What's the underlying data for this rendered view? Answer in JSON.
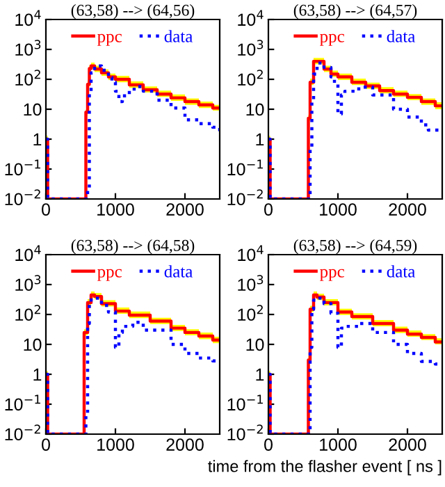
{
  "chart_data": [
    {
      "type": "step",
      "title": "(63,58) --> (64,56)",
      "legend": "top",
      "log": true,
      "grid": false,
      "xlim": [
        0,
        2500
      ],
      "xticks": [
        0,
        1000,
        2000
      ],
      "ylim": [
        0.01,
        10000
      ],
      "yticks": [
        {
          "value": 0.01,
          "label": "10$^{−2}$"
        },
        {
          "value": 0.1,
          "label": "10$^{−1}$"
        },
        1,
        10,
        {
          "value": 100,
          "label": "10$^{2}$"
        },
        {
          "value": 1000,
          "label": "10$^{3}$"
        },
        {
          "value": 10000,
          "label": "10$^{4}$"
        }
      ],
      "series": [
        {
          "name": "ppc",
          "color": "#ff0000",
          "line_style": "solid",
          "x": [
            0,
            25,
            575,
            600,
            625,
            650,
            700,
            800,
            900,
            1000,
            1200,
            1400,
            1600,
            1800,
            2000,
            2200,
            2400,
            2500
          ],
          "values": [
            1,
            0.01,
            8,
            68,
            230,
            280,
            220,
            165,
            120,
            100,
            65,
            45,
            32,
            24,
            18,
            14,
            11,
            11
          ],
          "lower": [
            0.8,
            0.01,
            6,
            55,
            185,
            225,
            175,
            130,
            95,
            80,
            52,
            36,
            26,
            19,
            14,
            11,
            9,
            9
          ],
          "upper": [
            1.3,
            0.01,
            10,
            90,
            300,
            360,
            285,
            215,
            155,
            130,
            85,
            58,
            42,
            31,
            23,
            18,
            14,
            14
          ]
        },
        {
          "name": "data",
          "color": "#0000ff",
          "line_style": "dotted",
          "x": [
            0,
            25,
            600,
            625,
            650,
            700,
            800,
            900,
            950,
            1000,
            1050,
            1100,
            1200,
            1300,
            1400,
            1600,
            1800,
            2000,
            2200,
            2400,
            2500
          ],
          "values": [
            1,
            0.01,
            0.02,
            40,
            165,
            280,
            200,
            115,
            80,
            40,
            18,
            28,
            47,
            57,
            40,
            20,
            11,
            4.4,
            3.3,
            2.5,
            1.4
          ]
        }
      ]
    },
    {
      "type": "step",
      "title": "(63,58) --> (64,57)",
      "legend": "top",
      "log": true,
      "grid": false,
      "xlim": [
        0,
        2500
      ],
      "xticks": [
        0,
        1000,
        2000
      ],
      "ylim": [
        0.01,
        10000
      ],
      "yticks": [
        {
          "value": 0.01,
          "label": "10$^{−2}$"
        },
        {
          "value": 0.1,
          "label": "10$^{−1}$"
        },
        1,
        10,
        {
          "value": 100,
          "label": "10$^{2}$"
        },
        {
          "value": 1000,
          "label": "10$^{3}$"
        },
        {
          "value": 10000,
          "label": "10$^{4}$"
        }
      ],
      "series": [
        {
          "name": "ppc",
          "color": "#ff0000",
          "line_style": "solid",
          "x": [
            0,
            25,
            575,
            600,
            650,
            700,
            800,
            900,
            1000,
            1200,
            1400,
            1600,
            1800,
            2000,
            2200,
            2400,
            2500
          ],
          "values": [
            1,
            0.01,
            5,
            80,
            400,
            400,
            220,
            150,
            120,
            80,
            60,
            42,
            32,
            25,
            18,
            13,
            13
          ],
          "lower": [
            0.8,
            0.01,
            4,
            64,
            320,
            320,
            175,
            120,
            95,
            64,
            48,
            34,
            26,
            20,
            14,
            10,
            10
          ],
          "upper": [
            1.3,
            0.01,
            6.5,
            105,
            520,
            520,
            285,
            195,
            155,
            105,
            78,
            55,
            42,
            32,
            23,
            17,
            17
          ]
        },
        {
          "name": "data",
          "color": "#0000ff",
          "line_style": "dotted",
          "x": [
            0,
            25,
            600,
            625,
            650,
            700,
            800,
            900,
            950,
            1000,
            1050,
            1100,
            1300,
            1500,
            1800,
            2000,
            2200,
            2300,
            2500
          ],
          "values": [
            1,
            0.01,
            0.5,
            20,
            150,
            350,
            250,
            120,
            70,
            7,
            30,
            40,
            55,
            30,
            10,
            5.5,
            3,
            2,
            1.8
          ]
        }
      ]
    },
    {
      "type": "step",
      "title": "(63,58) --> (64,58)",
      "legend": "top",
      "log": true,
      "grid": false,
      "xlim": [
        0,
        2500
      ],
      "xticks": [
        0,
        1000,
        2000
      ],
      "ylim": [
        0.01,
        10000
      ],
      "yticks": [
        {
          "value": 0.01,
          "label": "10$^{−2}$"
        },
        {
          "value": 0.1,
          "label": "10$^{−1}$"
        },
        1,
        10,
        {
          "value": 100,
          "label": "10$^{2}$"
        },
        {
          "value": 1000,
          "label": "10$^{3}$"
        },
        {
          "value": 10000,
          "label": "10$^{4}$"
        }
      ],
      "series": [
        {
          "name": "ppc",
          "color": "#ff0000",
          "line_style": "solid",
          "x": [
            0,
            25,
            550,
            600,
            650,
            700,
            800,
            1000,
            1200,
            1500,
            1800,
            2000,
            2200,
            2400,
            2500
          ],
          "values": [
            1,
            0.01,
            25,
            250,
            450,
            400,
            230,
            130,
            95,
            60,
            35,
            25,
            19,
            14,
            14
          ],
          "lower": [
            0.8,
            0.01,
            20,
            200,
            360,
            320,
            185,
            105,
            76,
            48,
            28,
            20,
            15,
            11,
            11
          ],
          "upper": [
            1.3,
            0.01,
            32,
            325,
            585,
            520,
            300,
            170,
            125,
            78,
            45,
            32,
            25,
            18,
            18
          ]
        },
        {
          "name": "data",
          "color": "#0000ff",
          "line_style": "dotted",
          "x": [
            0,
            25,
            575,
            600,
            625,
            650,
            800,
            900,
            1000,
            1050,
            1100,
            1250,
            1400,
            1800,
            2000,
            2200,
            2400,
            2500
          ],
          "values": [
            1,
            0.01,
            0.05,
            50,
            250,
            350,
            200,
            120,
            8,
            25,
            40,
            55,
            30,
            10,
            5,
            3.5,
            2.8,
            2.8
          ]
        }
      ]
    },
    {
      "type": "step",
      "title": "(63,58) --> (64,59)",
      "xlabel": "time from the flasher event [ ns ]",
      "legend": "top",
      "log": true,
      "grid": false,
      "xlim": [
        0,
        2500
      ],
      "xticks": [
        0,
        1000,
        2000
      ],
      "ylim": [
        0.01,
        10000
      ],
      "yticks": [
        {
          "value": 0.01,
          "label": "10$^{−2}$"
        },
        {
          "value": 0.1,
          "label": "10$^{−1}$"
        },
        1,
        10,
        {
          "value": 100,
          "label": "10$^{2}$"
        },
        {
          "value": 1000,
          "label": "10$^{3}$"
        },
        {
          "value": 10000,
          "label": "10$^{4}$"
        }
      ],
      "series": [
        {
          "name": "ppc",
          "color": "#ff0000",
          "line_style": "solid",
          "x": [
            0,
            25,
            575,
            600,
            650,
            700,
            800,
            1000,
            1200,
            1500,
            1800,
            2000,
            2200,
            2400,
            2500
          ],
          "values": [
            1,
            0.01,
            3,
            150,
            450,
            380,
            250,
            120,
            85,
            50,
            30,
            22,
            17,
            12,
            12
          ],
          "lower": [
            0.8,
            0.01,
            2.4,
            120,
            360,
            305,
            200,
            96,
            68,
            40,
            24,
            18,
            14,
            10,
            10
          ],
          "upper": [
            1.3,
            0.01,
            4,
            195,
            585,
            495,
            325,
            155,
            110,
            65,
            39,
            29,
            22,
            16,
            16
          ]
        },
        {
          "name": "data",
          "color": "#0000ff",
          "line_style": "dotted",
          "x": [
            0,
            25,
            600,
            625,
            650,
            700,
            800,
            900,
            1000,
            1050,
            1100,
            1300,
            1500,
            1800,
            2000,
            2200,
            2400,
            2500
          ],
          "values": [
            1,
            0.01,
            8,
            150,
            300,
            350,
            230,
            110,
            8,
            35,
            40,
            50,
            25,
            10,
            5,
            2.7,
            2.2,
            2.2
          ]
        }
      ]
    }
  ]
}
